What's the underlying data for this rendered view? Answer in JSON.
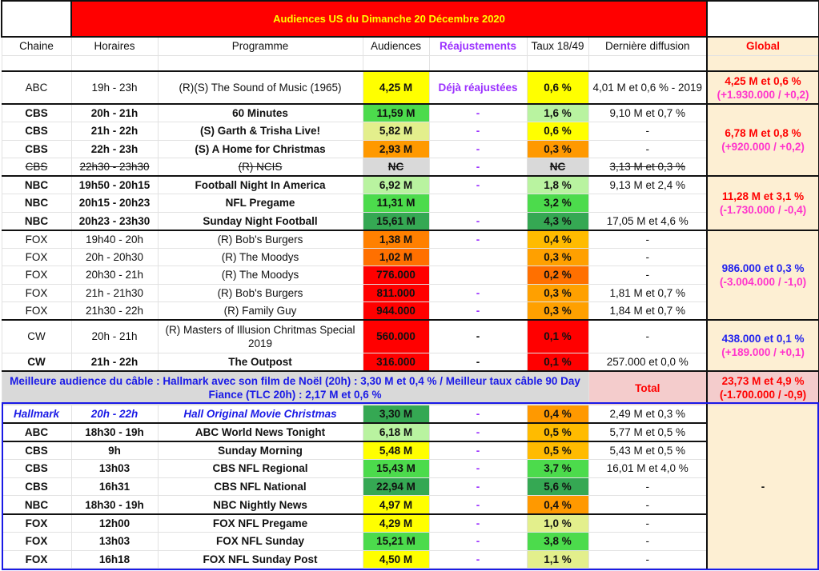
{
  "title": "Audiences US du Dimanche 20 Décembre 2020",
  "images": [
    "christmas-lights-image",
    "christmas-tree-image"
  ],
  "headers": [
    "Chaine",
    "Horaires",
    "Programme",
    "Audiences",
    "Réajustements",
    "Taux 18/49",
    "Dernière diffusion",
    "Global"
  ],
  "rows": [
    {
      "c": "ABC",
      "h": "19h - 23h",
      "p": "(R)(S) The Sound of Music (1965)",
      "a": "4,25 M",
      "ab": "#ffff00",
      "r": "Déjà réajustées",
      "t": "0,6 %",
      "tb": "#ffff00",
      "d": "4,01 M et 0,6 % - 2019",
      "bold": false,
      "sep": true,
      "tall": true
    },
    {
      "c": "CBS",
      "h": "20h - 21h",
      "p": "60 Minutes",
      "a": "11,59 M",
      "ab": "#4cdb4c",
      "r": "-",
      "t": "1,6 %",
      "tb": "#b9f3a0",
      "d": "9,10 M et 0,7 %",
      "bold": true,
      "sep": true
    },
    {
      "c": "CBS",
      "h": "21h - 22h",
      "p": "(S) Garth & Trisha Live!",
      "a": "5,82 M",
      "ab": "#e3ef8c",
      "r": "-",
      "t": "0,6 %",
      "tb": "#ffff00",
      "d": "-",
      "bold": true
    },
    {
      "c": "CBS",
      "h": "22h - 23h",
      "p": "(S) A Home for Christmas",
      "a": "2,93 M",
      "ab": "#ff9900",
      "r": "-",
      "t": "0,3 %",
      "tb": "#ff9900",
      "d": "-",
      "bold": true
    },
    {
      "c": "CBS",
      "h": "22h30 - 23h30",
      "p": "(R) NCIS",
      "a": "NC",
      "ab": "#d9d9d9",
      "r": "-",
      "t": "NC",
      "tb": "#d9d9d9",
      "d": "3,13 M et 0,3 %",
      "strike": true
    },
    {
      "c": "NBC",
      "h": "19h50 - 20h15",
      "p": "Football Night In America",
      "a": "6,92 M",
      "ab": "#b9f3a0",
      "r": "-",
      "t": "1,8 %",
      "tb": "#b9f3a0",
      "d": "9,13 M et 2,4 %",
      "bold": true,
      "sep": true
    },
    {
      "c": "NBC",
      "h": "20h15 - 20h23",
      "p": "NFL Pregame",
      "a": "11,31 M",
      "ab": "#4cdb4c",
      "r": "",
      "t": "3,2 %",
      "tb": "#4cdb4c",
      "d": "",
      "bold": true
    },
    {
      "c": "NBC",
      "h": "20h23 - 23h30",
      "p": "Sunday Night Football",
      "a": "15,61 M",
      "ab": "#35a853",
      "r": "-",
      "t": "4,3 %",
      "tb": "#35a853",
      "d": "17,05 M et 4,6 %",
      "bold": true
    },
    {
      "c": "FOX",
      "h": "19h40 - 20h",
      "p": "(R) Bob's Burgers",
      "a": "1,38 M",
      "ab": "#ff8000",
      "r": "-",
      "t": "0,4 %",
      "tb": "#ffbb00",
      "d": "-",
      "sep": true
    },
    {
      "c": "FOX",
      "h": "20h - 20h30",
      "p": "(R) The Moodys",
      "a": "1,02 M",
      "ab": "#ff7000",
      "r": "",
      "t": "0,3 %",
      "tb": "#ffa000",
      "d": "-"
    },
    {
      "c": "FOX",
      "h": "20h30 - 21h",
      "p": "(R) The Moodys",
      "a": "776.000",
      "ab": "#ff0000",
      "r": "",
      "t": "0,2 %",
      "tb": "#ff7000",
      "d": "-"
    },
    {
      "c": "FOX",
      "h": "21h - 21h30",
      "p": "(R) Bob's Burgers",
      "a": "811.000",
      "ab": "#ff0000",
      "r": "-",
      "t": "0,3 %",
      "tb": "#ffa000",
      "d": "1,81 M et 0,7 %"
    },
    {
      "c": "FOX",
      "h": "21h30 - 22h",
      "p": "(R) Family Guy",
      "a": "944.000",
      "ab": "#ff0000",
      "r": "-",
      "t": "0,3 %",
      "tb": "#ffa000",
      "d": "1,84 M et 0,7 %"
    },
    {
      "c": "CW",
      "h": "20h - 21h",
      "p": "(R) Masters of Illusion Chritmas Special 2019",
      "a": "560.000",
      "ab": "#ff0000",
      "r": "-",
      "rd": true,
      "t": "0,1 %",
      "tb": "#ff0000",
      "d": "-",
      "sep": true,
      "tall": true
    },
    {
      "c": "CW",
      "h": "21h - 22h",
      "p": "The Outpost",
      "a": "316.000",
      "ab": "#ff0000",
      "r": "-",
      "rd": true,
      "t": "0,1 %",
      "tb": "#ff0000",
      "d": "257.000 et 0,0 %",
      "bold": true
    }
  ],
  "globals": [
    {
      "l1": "4,25 M et 0,6 %",
      "l2": "(+1.930.000 / +0,2)",
      "c1": "gl1"
    },
    {
      "l1": "6,78 M et 0,8 %",
      "l2": "(+920.000 / +0,2)",
      "c1": "gl1"
    },
    {
      "l1": "11,28 M et 3,1 %",
      "l2": "(-1.730.000 / -0,4)",
      "c1": "gl1"
    },
    {
      "l1": "986.000 et 0,3 %",
      "l2": "(-3.004.000 / -1,0)",
      "c1": "gl3"
    },
    {
      "l1": "438.000 et 0,1 %",
      "l2": "(+189.000 / +0,1)",
      "c1": "gl3"
    }
  ],
  "banner": "Meilleure audience du câble : Hallmark avec son film de Noël (20h) : 3,30 M et 0,4 % / Meilleur taux câble 90 Day Fiance (TLC 20h) : 2,17 M et 0,6 %",
  "total": {
    "label": "Total",
    "l1": "23,73 M et 4,9 %",
    "l2": "(-1.700.000 / -0,9)"
  },
  "lower_rows": [
    {
      "c": "Hallmark",
      "h": "20h - 22h",
      "p": "Hall Original Movie Christmas",
      "a": "3,30 M",
      "ab": "#35a853",
      "r": "-",
      "t": "0,4 %",
      "tb": "#ff9900",
      "d": "2,49 M et 0,3 %",
      "hm": true
    },
    {
      "c": "ABC",
      "h": "18h30 - 19h",
      "p": "ABC World News Tonight",
      "a": "6,18 M",
      "ab": "#b9f3a0",
      "r": "-",
      "t": "0,5 %",
      "tb": "#ffbb00",
      "d": "5,77 M et 0,5 %",
      "bold": true,
      "sep": true
    },
    {
      "c": "CBS",
      "h": "9h",
      "p": "Sunday Morning",
      "a": "5,48 M",
      "ab": "#ffff00",
      "r": "-",
      "t": "0,5 %",
      "tb": "#ffbb00",
      "d": "5,43 M et 0,5 %",
      "bold": true,
      "sep": true
    },
    {
      "c": "CBS",
      "h": "13h03",
      "p": "CBS NFL Regional",
      "a": "15,43 M",
      "ab": "#4cdb4c",
      "r": "-",
      "t": "3,7 %",
      "tb": "#4cdb4c",
      "d": "16,01 M et 4,0 %",
      "bold": true
    },
    {
      "c": "CBS",
      "h": "16h31",
      "p": "CBS NFL National",
      "a": "22,94 M",
      "ab": "#35a853",
      "r": "-",
      "t": "5,6 %",
      "tb": "#35a853",
      "d": "-",
      "bold": true
    },
    {
      "c": "NBC",
      "h": "18h30 - 19h",
      "p": "NBC Nightly News",
      "a": "4,97 M",
      "ab": "#ffff00",
      "r": "-",
      "t": "0,4 %",
      "tb": "#ff9900",
      "d": "-",
      "bold": true
    },
    {
      "c": "FOX",
      "h": "12h00",
      "p": "FOX NFL Pregame",
      "a": "4,29 M",
      "ab": "#ffff00",
      "r": "-",
      "t": "1,0 %",
      "tb": "#e3ef8c",
      "d": "-",
      "bold": true,
      "sep": true
    },
    {
      "c": "FOX",
      "h": "13h03",
      "p": "FOX NFL Sunday",
      "a": "15,21 M",
      "ab": "#4cdb4c",
      "r": "-",
      "t": "3,8 %",
      "tb": "#4cdb4c",
      "d": "-",
      "bold": true
    },
    {
      "c": "FOX",
      "h": "16h18",
      "p": "FOX NFL Sunday Post",
      "a": "4,50 M",
      "ab": "#ffff00",
      "r": "-",
      "t": "1,1 %",
      "tb": "#e3ef8c",
      "d": "-",
      "bold": true
    }
  ],
  "lower_global": "-"
}
